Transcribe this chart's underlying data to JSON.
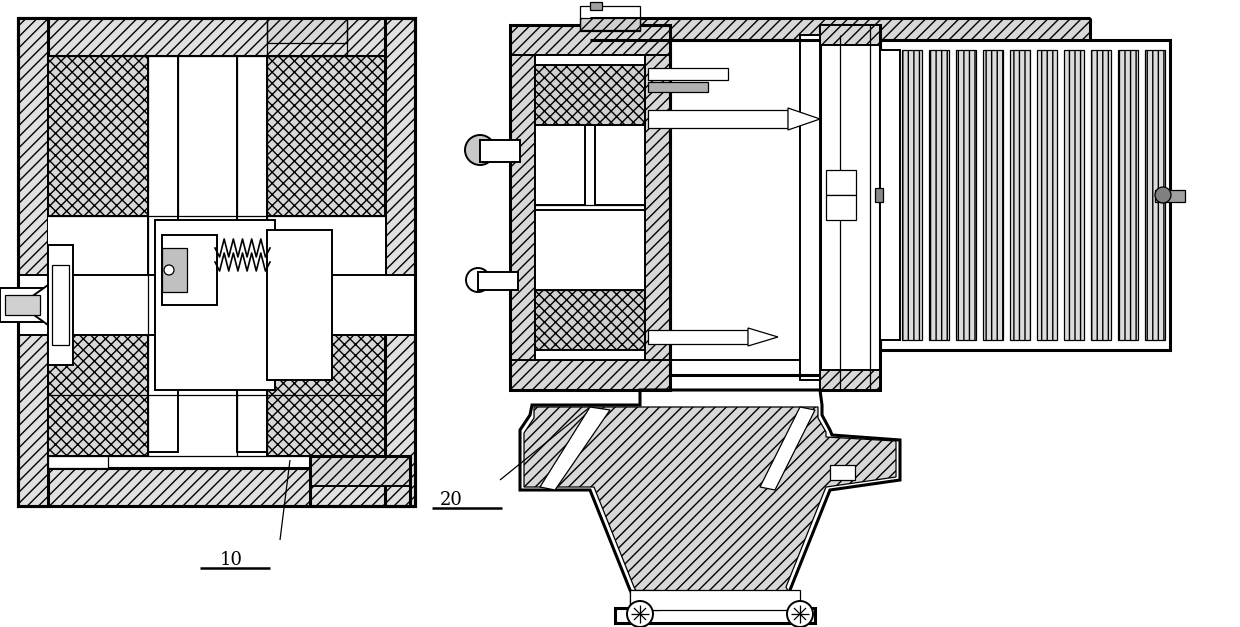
{
  "background_color": "#ffffff",
  "line_color": "#000000",
  "fig_width": 12.4,
  "fig_height": 6.27,
  "dpi": 100,
  "label_10": "10",
  "label_20": "20",
  "label_fontsize": 13
}
